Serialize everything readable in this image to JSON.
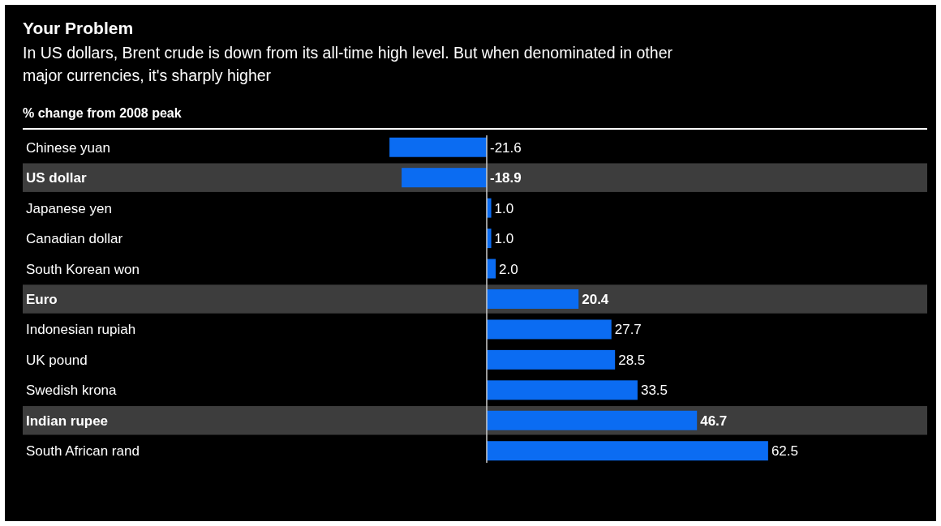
{
  "chart_data": {
    "type": "bar",
    "orientation": "horizontal",
    "title": "Your Problem",
    "subtitle": "In US dollars, Brent crude is down from its all-time high level. But when denominated in other major currencies, it's sharply higher",
    "xlabel": "% change from 2008 peak",
    "categories": [
      "Chinese yuan",
      "US dollar",
      "Japanese yen",
      "Canadian dollar",
      "South Korean won",
      "Euro",
      "Indonesian rupiah",
      "UK pound",
      "Swedish krona",
      "Indian rupee",
      "South African rand"
    ],
    "values": [
      -21.6,
      -18.9,
      1.0,
      1.0,
      2.0,
      20.4,
      27.7,
      28.5,
      33.5,
      46.7,
      62.5
    ],
    "value_labels": [
      "-21.6",
      "-18.9",
      "1.0",
      "1.0",
      "2.0",
      "20.4",
      "27.7",
      "28.5",
      "33.5",
      "46.7",
      "62.5"
    ],
    "color": "#0b6cf2",
    "bands": [
      {
        "axis": "y",
        "from": "US dollar",
        "to": "US dollar",
        "color": "#3d3d3d"
      },
      {
        "axis": "y",
        "from": "Euro",
        "to": "Euro",
        "color": "#3d3d3d"
      },
      {
        "axis": "y",
        "from": "Indian rupee",
        "to": "Indian rupee",
        "color": "#3d3d3d"
      }
    ]
  }
}
